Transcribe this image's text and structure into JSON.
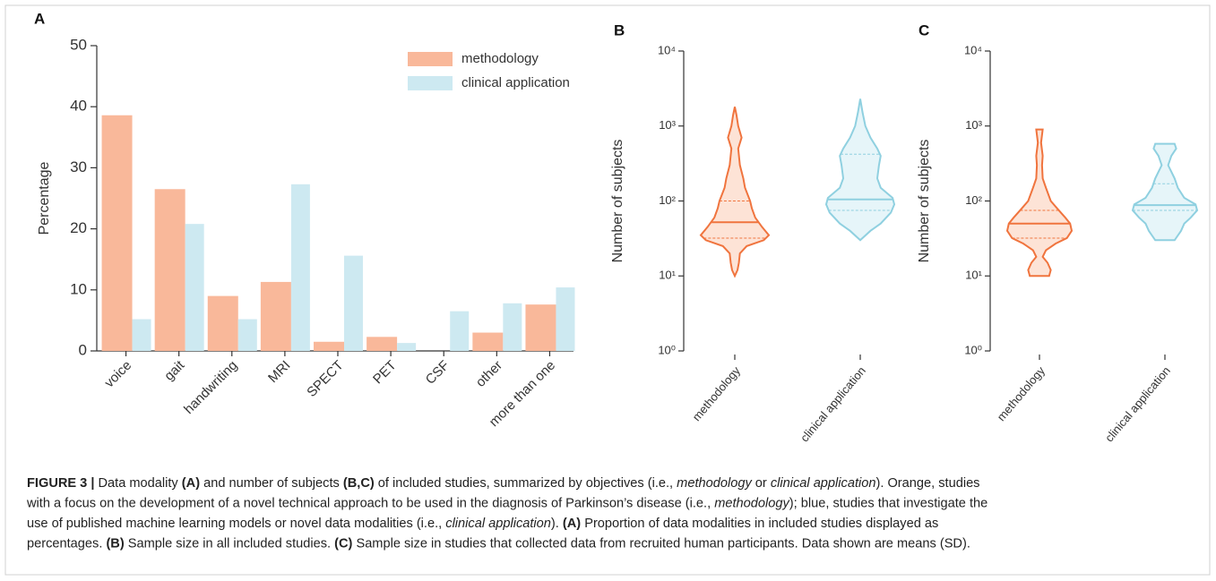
{
  "chart_data": [
    {
      "type": "bar",
      "panel": "A",
      "ylabel": "Percentage",
      "categories": [
        "voice",
        "gait",
        "handwriting",
        "MRI",
        "SPECT",
        "PET",
        "CSF",
        "other",
        "more than one"
      ],
      "series": [
        {
          "name": "methodology",
          "color": "#f9b89a",
          "values": [
            38.6,
            26.5,
            9.0,
            11.3,
            1.5,
            2.3,
            0,
            3.0,
            7.6
          ]
        },
        {
          "name": "clinical application",
          "color": "#cde9f1",
          "values": [
            5.2,
            20.8,
            5.2,
            27.3,
            15.6,
            1.3,
            6.5,
            7.8,
            10.4
          ]
        }
      ],
      "ylim": [
        0,
        50
      ],
      "yticks": [
        0,
        10,
        20,
        30,
        40,
        50
      ],
      "legend": "top-right"
    },
    {
      "type": "violin",
      "panel": "B",
      "ylabel": "Number of subjects",
      "log_scale": true,
      "categories": [
        "methodology",
        "clinical application"
      ],
      "ylim": [
        1,
        10000
      ],
      "yticks": [
        {
          "value": 1,
          "label": "10⁰"
        },
        {
          "value": 10,
          "label": "10¹"
        },
        {
          "value": 100,
          "label": "10²"
        },
        {
          "value": 1000,
          "label": "10³"
        },
        {
          "value": 10000,
          "label": "10⁴"
        }
      ],
      "series": [
        {
          "color": "#f0743e",
          "fill": "#fde3d6",
          "median": 52,
          "q1": 32,
          "q3": 100,
          "profile_values": [
            10,
            12,
            15,
            20,
            25,
            30,
            35,
            45,
            60,
            80,
            100,
            150,
            200,
            300,
            500,
            700,
            1000,
            1400,
            1800
          ],
          "profile_widths": [
            0,
            0.08,
            0.12,
            0.15,
            0.35,
            0.85,
            1,
            0.8,
            0.6,
            0.5,
            0.45,
            0.3,
            0.25,
            0.15,
            0.1,
            0.2,
            0.1,
            0.05,
            0
          ]
        },
        {
          "color": "#8fd0e0",
          "fill": "#e6f5f9",
          "median": 105,
          "q1": 75,
          "q3": 420,
          "profile_values": [
            30,
            40,
            50,
            70,
            90,
            110,
            150,
            200,
            300,
            400,
            500,
            700,
            1000,
            1500,
            2300
          ],
          "profile_widths": [
            0,
            0.3,
            0.6,
            0.9,
            1,
            0.95,
            0.6,
            0.5,
            0.55,
            0.6,
            0.5,
            0.3,
            0.15,
            0.07,
            0
          ]
        }
      ]
    },
    {
      "type": "violin",
      "panel": "C",
      "ylabel": "Number of subjects",
      "log_scale": true,
      "categories": [
        "methodology",
        "clinical application"
      ],
      "ylim": [
        1,
        10000
      ],
      "yticks": [
        {
          "value": 1,
          "label": "10⁰"
        },
        {
          "value": 10,
          "label": "10¹"
        },
        {
          "value": 100,
          "label": "10²"
        },
        {
          "value": 1000,
          "label": "10³"
        },
        {
          "value": 10000,
          "label": "10⁴"
        }
      ],
      "series": [
        {
          "color": "#f0743e",
          "fill": "#fde3d6",
          "median": 50,
          "q1": 32,
          "q3": 75,
          "profile_values": [
            10,
            12,
            15,
            18,
            22,
            27,
            32,
            40,
            50,
            60,
            75,
            100,
            150,
            200,
            300,
            400,
            600,
            900
          ],
          "profile_widths": [
            0.3,
            0.35,
            0.25,
            0.1,
            0.2,
            0.5,
            0.85,
            1,
            0.95,
            0.8,
            0.6,
            0.35,
            0.2,
            0.1,
            0.08,
            0.1,
            0.05,
            0.1
          ]
        },
        {
          "color": "#8fd0e0",
          "fill": "#e6f5f9",
          "median": 88,
          "q1": 75,
          "q3": 170,
          "profile_values": [
            30,
            40,
            50,
            60,
            75,
            90,
            110,
            150,
            200,
            300,
            400,
            500,
            580
          ],
          "profile_widths": [
            0.3,
            0.5,
            0.6,
            0.8,
            1,
            0.95,
            0.6,
            0.4,
            0.3,
            0.1,
            0.2,
            0.35,
            0.3
          ]
        }
      ]
    }
  ],
  "caption": [
    [
      {
        "text": "FIGURE 3 |",
        "bold": true
      },
      {
        "text": " Data modality "
      },
      {
        "text": "(A)",
        "bold": true
      },
      {
        "text": " and number of subjects "
      },
      {
        "text": "(B,C)",
        "bold": true
      },
      {
        "text": " of included studies, summarized by objectives (i.e., "
      },
      {
        "text": "methodology",
        "italic": true
      },
      {
        "text": " or "
      },
      {
        "text": "clinical application",
        "italic": true
      },
      {
        "text": "). Orange, studies"
      }
    ],
    [
      {
        "text": "with a focus on the development of a novel technical approach to be used in the diagnosis of Parkinson’s disease (i.e., "
      },
      {
        "text": "methodology",
        "italic": true
      },
      {
        "text": "); blue, studies that investigate the"
      }
    ],
    [
      {
        "text": "use of published machine learning models or novel data modalities (i.e., "
      },
      {
        "text": "clinical application",
        "italic": true
      },
      {
        "text": "). "
      },
      {
        "text": "(A)",
        "bold": true
      },
      {
        "text": " Proportion of data modalities in included studies displayed as"
      }
    ],
    [
      {
        "text": "percentages. "
      },
      {
        "text": "(B)",
        "bold": true
      },
      {
        "text": " Sample size in all included studies. "
      },
      {
        "text": "(C)",
        "bold": true
      },
      {
        "text": " Sample size in studies that collected data from recruited human participants. Data shown are means (SD)."
      }
    ]
  ]
}
